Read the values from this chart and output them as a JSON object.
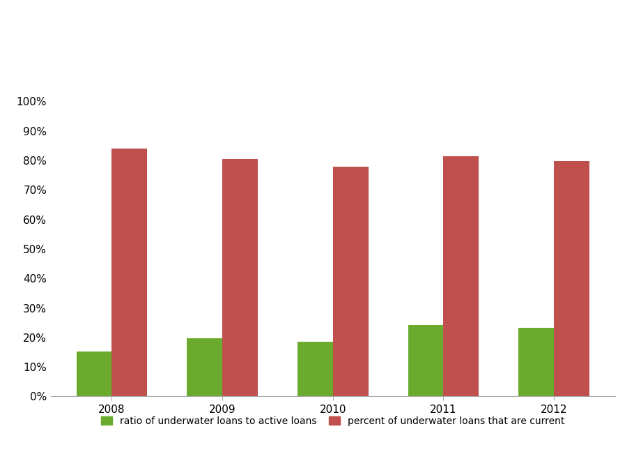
{
  "years": [
    "2008",
    "2009",
    "2010",
    "2011",
    "2012"
  ],
  "green_values": [
    0.152,
    0.198,
    0.185,
    0.242,
    0.232
  ],
  "red_values": [
    0.84,
    0.805,
    0.778,
    0.815,
    0.798
  ],
  "green_color": "#6AAB2E",
  "red_color": "#C0504D",
  "background_color": "#FFFFFF",
  "legend_label_green": "ratio of underwater loans to active loans",
  "legend_label_red": "percent of underwater loans that are current",
  "ylim": [
    0,
    1.0
  ],
  "yticks": [
    0,
    0.1,
    0.2,
    0.3,
    0.4,
    0.5,
    0.6,
    0.7,
    0.8,
    0.9,
    1.0
  ],
  "ytick_labels": [
    "0%",
    "10%",
    "20%",
    "30%",
    "40%",
    "50%",
    "60%",
    "70%",
    "80%",
    "90%",
    "100%"
  ],
  "bar_width": 0.32,
  "tick_fontsize": 11,
  "legend_fontsize": 10
}
